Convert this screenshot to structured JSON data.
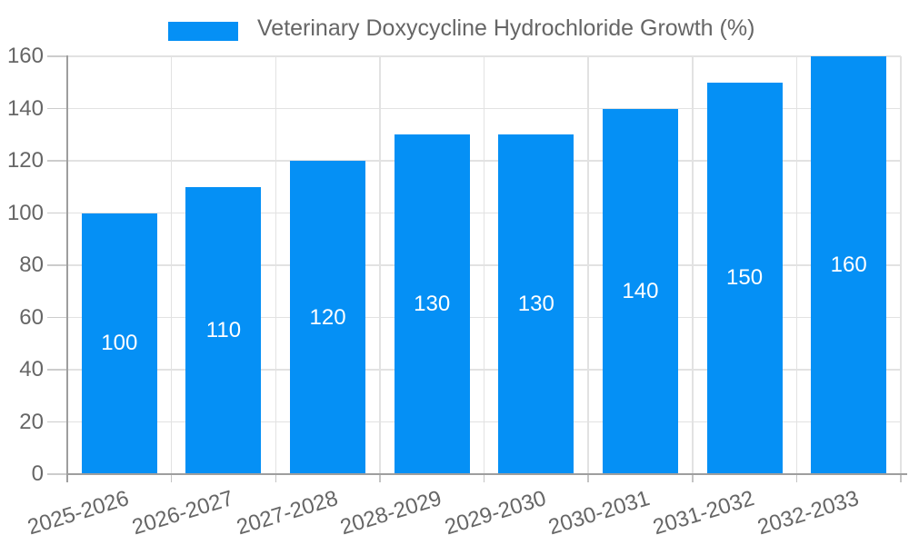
{
  "chart_data": {
    "type": "bar",
    "title": "Veterinary Doxycycline Hydrochloride Growth (%)",
    "legend": {
      "position": "top",
      "label": "Veterinary Doxycycline Hydrochloride Growth (%)"
    },
    "categories": [
      "2025-2026",
      "2026-2027",
      "2027-2028",
      "2028-2029",
      "2029-2030",
      "2030-2031",
      "2031-2032",
      "2032-2033"
    ],
    "series": [
      {
        "name": "Veterinary Doxycycline Hydrochloride Growth (%)",
        "values": [
          100,
          110,
          120,
          130,
          130,
          140,
          150,
          160
        ]
      }
    ],
    "bar_value_labels": [
      "100",
      "110",
      "120",
      "130",
      "130",
      "140",
      "150",
      "160"
    ],
    "xlabel": "",
    "ylabel": "",
    "ylim": [
      0,
      160
    ],
    "yticks": [
      0,
      20,
      40,
      60,
      80,
      100,
      120,
      140,
      160
    ],
    "grid": true,
    "colors": {
      "bar": "#0590f5",
      "bar_value_text": "#ffffff",
      "axis_text": "#666666",
      "axis_line": "#9e9e9e",
      "gridline": "#e2e2e2"
    }
  }
}
